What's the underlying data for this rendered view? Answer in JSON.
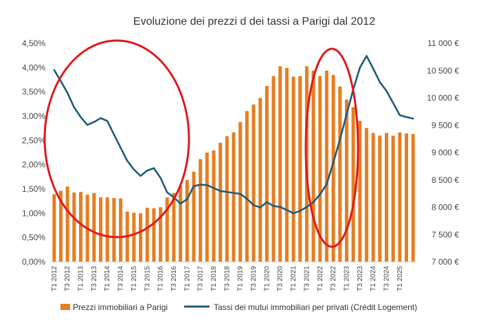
{
  "chart_data": {
    "type": "bar+line",
    "title": "Evoluzione dei prezzi d dei tassi a Parigi dal 2012",
    "categories": [
      "T1 2012",
      "T2 2012",
      "T3 2012",
      "T4 2012",
      "T1 2013",
      "T2 2013",
      "T3 2013",
      "T4 2013",
      "T1 2014",
      "T2 2014",
      "T3 2014",
      "T4 2014",
      "T1 2015",
      "T2 2015",
      "T3 2015",
      "T4 2015",
      "T1 2016",
      "T2 2016",
      "T3 2016",
      "T4 2016",
      "T1 2017",
      "T2 2017",
      "T3 2017",
      "T4 2017",
      "T1 2018",
      "T2 2018",
      "T3 2018",
      "T4 2018",
      "T1 2019",
      "T2 2019",
      "T3 2019",
      "T4 2019",
      "T1 2020",
      "T2 2020",
      "T3 2020",
      "T4 2020",
      "T1 2021",
      "T2 2021",
      "T3 2021",
      "T4 2021",
      "T1 2022",
      "T2 2022",
      "T3 2022",
      "T4 2022",
      "T1 2023",
      "T2 2023",
      "T3 2023",
      "T4 2023",
      "T1 2024",
      "T2 2024",
      "T3 2024",
      "T4 2024",
      "T1 2025",
      "T2 2025",
      "T3 2025"
    ],
    "x_tick_labels": [
      "T1 2012",
      "T3 2012",
      "T1 2013",
      "T3 2013",
      "T1 2014",
      "T3 2014",
      "T1 2015",
      "T3 2015",
      "T1 2016",
      "T3 2016",
      "T1 2017",
      "T3 2017",
      "T1 2018",
      "T3 2018",
      "T1 2019",
      "T3 2019",
      "T1 2020",
      "T3 2020",
      "T1 2021",
      "T3 2021",
      "T1 2022",
      "T3 2022",
      "T1 2023",
      "T3 2023",
      "T1 2024",
      "T3 2024",
      "T1 2025"
    ],
    "series": [
      {
        "name": "Prezzi immobiliari a Parigi",
        "type": "bar",
        "axis": "right",
        "color": "#E67E22",
        "values": [
          8240,
          8300,
          8380,
          8270,
          8280,
          8230,
          8260,
          8180,
          8180,
          8170,
          8160,
          7920,
          7900,
          7890,
          7990,
          7980,
          8000,
          8180,
          8260,
          8390,
          8500,
          8650,
          8880,
          9000,
          9040,
          9180,
          9300,
          9370,
          9560,
          9760,
          9880,
          10000,
          10220,
          10400,
          10580,
          10550,
          10390,
          10400,
          10580,
          10500,
          10400,
          10500,
          10420,
          10210,
          9970,
          9830,
          9580,
          9450,
          9360,
          9310,
          9360,
          9310,
          9370,
          9350,
          9340
        ]
      },
      {
        "name": "Tassi dei mutui immobiliari per privati (Crédit Logement)",
        "type": "line",
        "axis": "left",
        "color": "#1B5C7A",
        "values": [
          3.95,
          3.72,
          3.48,
          3.18,
          2.98,
          2.82,
          2.88,
          2.96,
          2.9,
          2.62,
          2.35,
          2.08,
          1.9,
          1.77,
          1.88,
          1.93,
          1.73,
          1.43,
          1.33,
          1.2,
          1.29,
          1.56,
          1.59,
          1.58,
          1.52,
          1.46,
          1.44,
          1.42,
          1.4,
          1.3,
          1.17,
          1.12,
          1.23,
          1.15,
          1.13,
          1.07,
          1.0,
          1.05,
          1.13,
          1.23,
          1.39,
          1.6,
          2.05,
          2.52,
          3.04,
          3.55,
          4.0,
          4.24,
          3.98,
          3.7,
          3.52,
          3.27,
          3.02,
          2.98,
          2.95
        ]
      }
    ],
    "y_left": {
      "min": 0,
      "max": 4.5,
      "step": 0.5,
      "tick_labels": [
        "0,00%",
        "0,50%",
        "1,00%",
        "1,50%",
        "2,00%",
        "2,50%",
        "3,00%",
        "3,50%",
        "4,00%",
        "4,50%"
      ]
    },
    "y_right": {
      "min": 7000,
      "max": 11000,
      "step": 500,
      "tick_labels": [
        "7 000 €",
        "7 500 €",
        "8 000 €",
        "8 500 €",
        "9 000 €",
        "9 500 €",
        "10 000 €",
        "10 500 €",
        "11 000 €"
      ]
    },
    "annotations": [
      {
        "shape": "ellipse",
        "color": "#E0181B",
        "around": "T3 2012 – T3 2016 (rate decline)"
      },
      {
        "shape": "ellipse",
        "color": "#E0181B",
        "around": "T4 2021 – T1 2023 (rate surge)"
      }
    ],
    "legend": {
      "position": "bottom"
    },
    "grid": false
  }
}
